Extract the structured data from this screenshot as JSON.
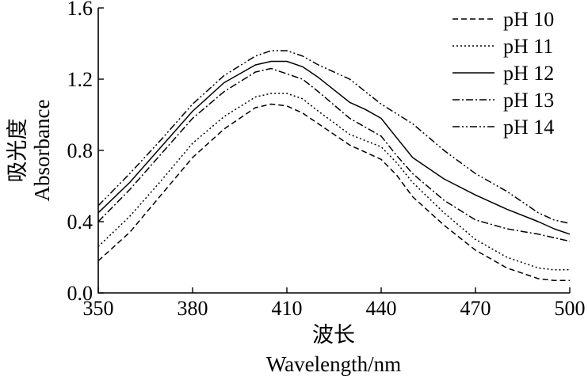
{
  "chart_data": {
    "type": "line",
    "title": "",
    "xlabel_cn": "波长",
    "xlabel": "Wavelength/nm",
    "ylabel_cn": "吸光度",
    "ylabel": "Absorbance",
    "xlim": [
      350,
      500
    ],
    "ylim": [
      0.0,
      1.6
    ],
    "xticks": [
      350,
      380,
      410,
      440,
      470,
      500
    ],
    "yticks": [
      "0.0",
      "0.4",
      "0.8",
      "1.2",
      "1.6"
    ],
    "legend_position": "top-right",
    "series": [
      {
        "name": "pH 10",
        "dash": "dashed",
        "x": [
          350,
          360,
          370,
          380,
          390,
          400,
          405,
          410,
          415,
          420,
          430,
          440,
          445,
          450,
          460,
          470,
          480,
          490,
          495,
          500
        ],
        "y": [
          0.18,
          0.34,
          0.55,
          0.76,
          0.92,
          1.04,
          1.06,
          1.05,
          1.01,
          0.95,
          0.83,
          0.75,
          0.66,
          0.54,
          0.38,
          0.24,
          0.14,
          0.08,
          0.07,
          0.07
        ]
      },
      {
        "name": "pH 11",
        "dash": "dotted",
        "x": [
          350,
          360,
          370,
          380,
          390,
          400,
          405,
          410,
          415,
          420,
          430,
          440,
          445,
          450,
          460,
          470,
          480,
          490,
          495,
          500
        ],
        "y": [
          0.26,
          0.43,
          0.63,
          0.84,
          0.99,
          1.1,
          1.12,
          1.12,
          1.09,
          1.02,
          0.89,
          0.82,
          0.73,
          0.62,
          0.45,
          0.3,
          0.2,
          0.14,
          0.13,
          0.13
        ]
      },
      {
        "name": "pH 12",
        "dash": "solid",
        "x": [
          350,
          360,
          370,
          380,
          390,
          400,
          405,
          410,
          415,
          420,
          430,
          435,
          440,
          445,
          450,
          460,
          470,
          480,
          490,
          495,
          500
        ],
        "y": [
          0.45,
          0.62,
          0.82,
          1.02,
          1.18,
          1.28,
          1.3,
          1.3,
          1.27,
          1.21,
          1.07,
          1.03,
          0.98,
          0.87,
          0.76,
          0.64,
          0.55,
          0.47,
          0.4,
          0.36,
          0.33
        ]
      },
      {
        "name": "pH 13",
        "dash": "dashdot",
        "x": [
          350,
          360,
          370,
          380,
          390,
          400,
          405,
          410,
          415,
          420,
          430,
          440,
          445,
          450,
          460,
          470,
          480,
          490,
          495,
          500
        ],
        "y": [
          0.4,
          0.58,
          0.78,
          0.98,
          1.13,
          1.24,
          1.26,
          1.23,
          1.2,
          1.13,
          0.98,
          0.88,
          0.77,
          0.67,
          0.52,
          0.41,
          0.36,
          0.33,
          0.31,
          0.29
        ]
      },
      {
        "name": "pH 14",
        "dash": "dashdotdot",
        "x": [
          350,
          360,
          370,
          380,
          390,
          400,
          405,
          410,
          415,
          420,
          430,
          440,
          450,
          460,
          470,
          480,
          490,
          495,
          500
        ],
        "y": [
          0.49,
          0.67,
          0.86,
          1.06,
          1.22,
          1.33,
          1.36,
          1.36,
          1.33,
          1.28,
          1.2,
          1.06,
          0.95,
          0.8,
          0.67,
          0.57,
          0.45,
          0.41,
          0.39
        ]
      }
    ]
  }
}
